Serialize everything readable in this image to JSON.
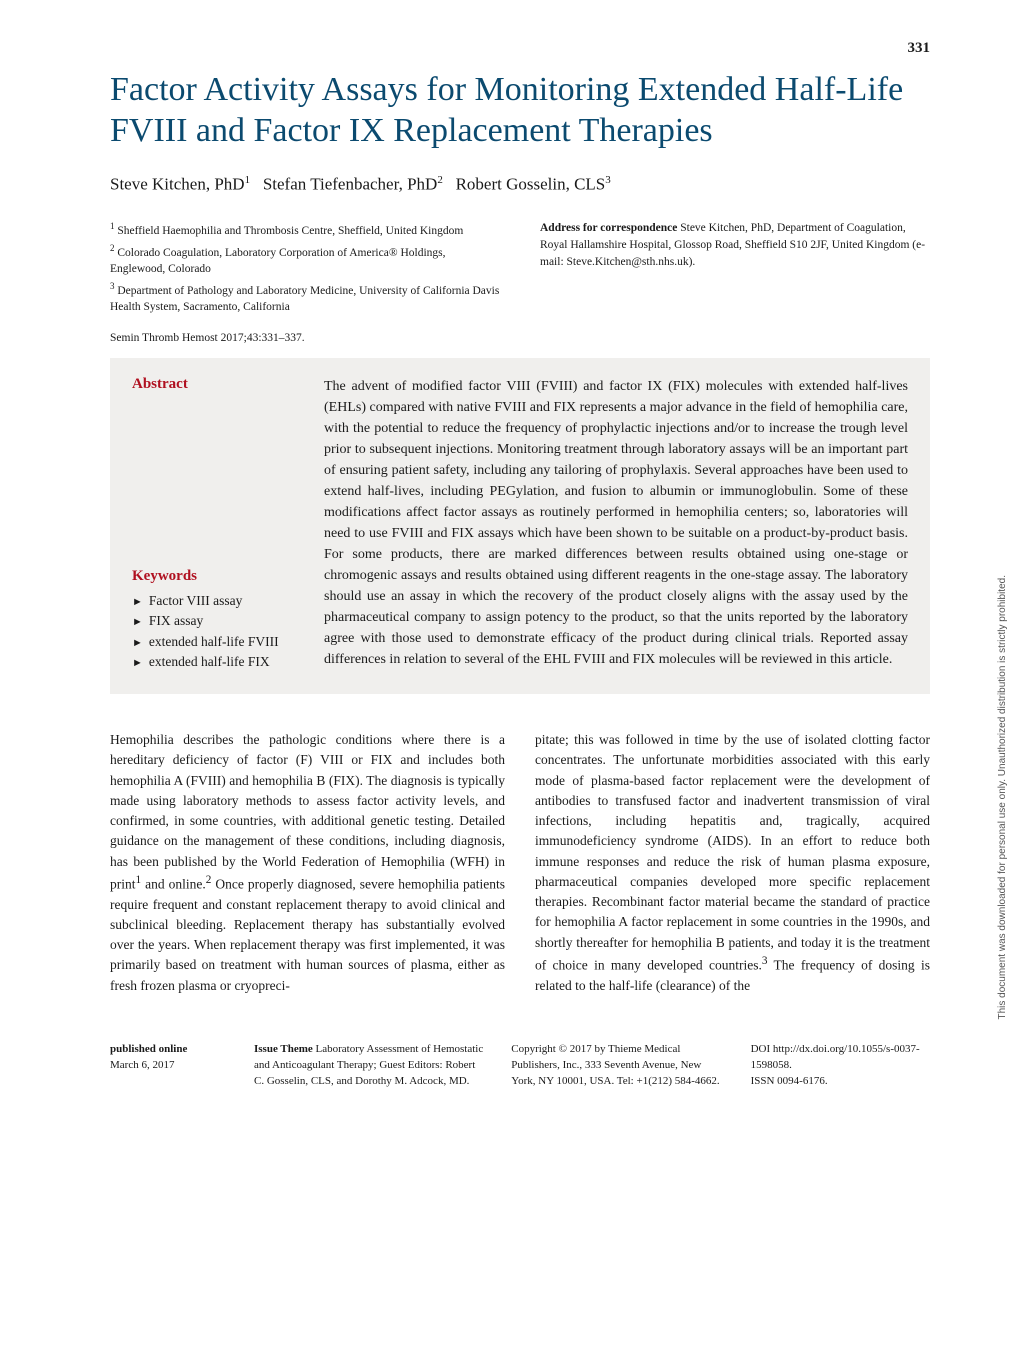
{
  "page_number": "331",
  "title": "Factor Activity Assays for Monitoring Extended Half-Life FVIII and Factor IX Replacement Therapies",
  "authors_html": "Steve Kitchen, PhD<sup>1</sup>&nbsp;&nbsp;&nbsp;Stefan Tiefenbacher, PhD<sup>2</sup>&nbsp;&nbsp;&nbsp;Robert Gosselin, CLS<sup>3</sup>",
  "affiliations": [
    "<sup>1</sup> Sheffield Haemophilia and Thrombosis Centre, Sheffield, United Kingdom",
    "<sup>2</sup> Colorado Coagulation, Laboratory Corporation of America® Holdings, Englewood, Colorado",
    "<sup>3</sup> Department of Pathology and Laboratory Medicine, University of California Davis Health System, Sacramento, California"
  ],
  "correspondence_label": "Address for correspondence",
  "correspondence_text": " Steve Kitchen, PhD, Department of Coagulation, Royal Hallamshire Hospital, Glossop Road, Sheffield S10 2JF, United Kingdom (e-mail: Steve.Kitchen@sth.nhs.uk).",
  "citation": "Semin Thromb Hemost 2017;43:331–337.",
  "abstract_heading": "Abstract",
  "abstract_text": "The advent of modified factor VIII (FVIII) and factor IX (FIX) molecules with extended half-lives (EHLs) compared with native FVIII and FIX represents a major advance in the field of hemophilia care, with the potential to reduce the frequency of prophylactic injections and/or to increase the trough level prior to subsequent injections. Monitoring treatment through laboratory assays will be an important part of ensuring patient safety, including any tailoring of prophylaxis. Several approaches have been used to extend half-lives, including PEGylation, and fusion to albumin or immunoglobulin. Some of these modifications affect factor assays as routinely performed in hemophilia centers; so, laboratories will need to use FVIII and FIX assays which have been shown to be suitable on a product-by-product basis. For some products, there are marked differences between results obtained using one-stage or chromogenic assays and results obtained using different reagents in the one-stage assay. The laboratory should use an assay in which the recovery of the product closely aligns with the assay used by the pharmaceutical company to assign potency to the product, so that the units reported by the laboratory agree with those used to demonstrate efficacy of the product during clinical trials. Reported assay differences in relation to several of the EHL FVIII and FIX molecules will be reviewed in this article.",
  "keywords_heading": "Keywords",
  "keywords": [
    "Factor VIII assay",
    "FIX assay",
    "extended half-life FVIII",
    "extended half-life FIX"
  ],
  "body_col1": "Hemophilia describes the pathologic conditions where there is a hereditary deficiency of factor (F) VIII or FIX and includes both hemophilia A (FVIII) and hemophilia B (FIX). The diagnosis is typically made using laboratory methods to assess factor activity levels, and confirmed, in some countries, with additional genetic testing. Detailed guidance on the management of these conditions, including diagnosis, has been published by the World Federation of Hemophilia (WFH) in print<sup>1</sup> and online.<sup>2</sup> Once properly diagnosed, severe hemophilia patients require frequent and constant replacement therapy to avoid clinical and subclinical bleeding. Replacement therapy has substantially evolved over the years. When replacement therapy was first implemented, it was primarily based on treatment with human sources of plasma, either as fresh frozen plasma or cryopreci-",
  "body_col2": "pitate; this was followed in time by the use of isolated clotting factor concentrates. The unfortunate morbidities associated with this early mode of plasma-based factor replacement were the development of antibodies to transfused factor and inadvertent transmission of viral infections, including hepatitis and, tragically, acquired immunodeficiency syndrome (AIDS). In an effort to reduce both immune responses and reduce the risk of human plasma exposure, pharmaceutical companies developed more specific replacement therapies. Recombinant factor material became the standard of practice for hemophilia A factor replacement in some countries in the 1990s, and shortly thereafter for hemophilia B patients, and today it is the treatment of choice in many developed countries.<sup>3</sup> The frequency of dosing is related to the half-life (clearance) of the",
  "footer": {
    "published_label": "published online",
    "published_value": "March 6, 2017",
    "issue_label": "Issue Theme",
    "issue_text": " Laboratory Assessment of Hemostatic and Anticoagulant Therapy; Guest Editors: Robert C. Gosselin, CLS, and Dorothy M. Adcock, MD.",
    "copyright": "Copyright © 2017 by Thieme Medical Publishers, Inc., 333 Seventh Avenue, New York, NY 10001, USA. Tel: +1(212) 584-4662.",
    "doi_label": "DOI",
    "doi_value": " http://dx.doi.org/10.1055/s-0037-1598058.",
    "issn_label": "ISSN",
    "issn_value": " 0094-6176."
  },
  "side_note": "This document was downloaded for personal use only. Unauthorized distribution is strictly prohibited.",
  "colors": {
    "title": "#0b4a6f",
    "heading_red": "#b01020",
    "abstract_bg": "#f0efed",
    "text": "#1a1a1a"
  }
}
